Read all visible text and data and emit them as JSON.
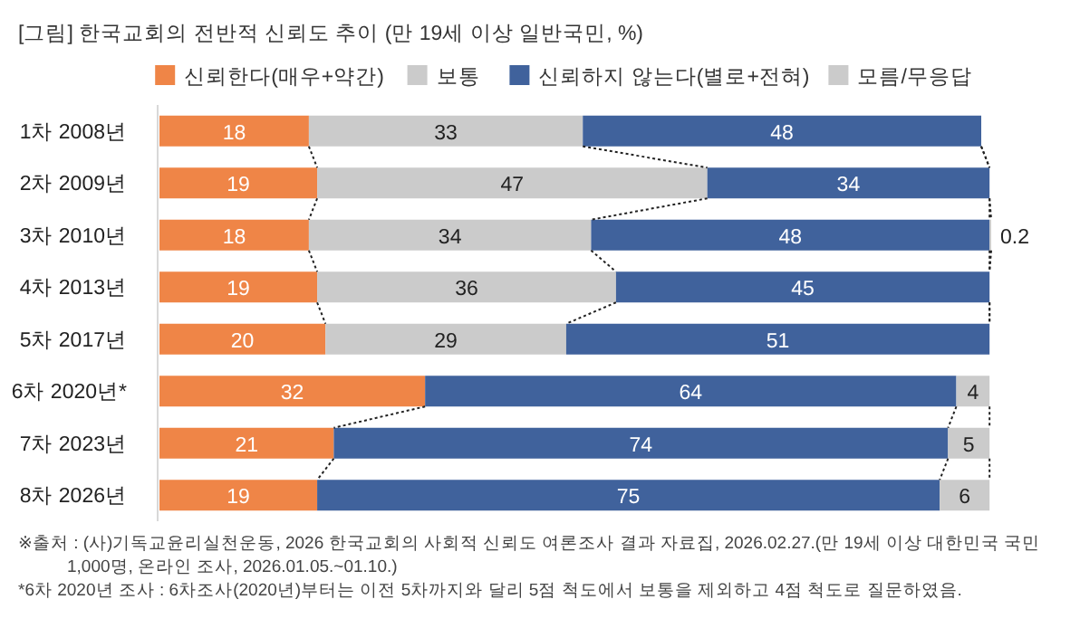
{
  "chart_data": {
    "type": "bar",
    "orientation": "horizontal",
    "stacked": true,
    "data_labels": true,
    "legend": "top",
    "title": "[그림] 한국교회의 전반적 신뢰도 추이 (만 19세 이상 일반국민, %)",
    "categories": [
      "1차 2008년",
      "2차 2009년",
      "3차 2010년",
      "4차 2013년",
      "5차 2017년",
      "6차 2020년*",
      "7차 2023년",
      "8차 2026년"
    ],
    "series": [
      {
        "name": "신뢰한다(매우+약간)",
        "color": "#ef8547",
        "values": [
          18,
          19,
          18,
          19,
          20,
          32,
          21,
          19
        ]
      },
      {
        "name": "보통",
        "color": "#cbcbcb",
        "values": [
          33,
          47,
          34,
          36,
          29,
          null,
          null,
          null
        ]
      },
      {
        "name": "신뢰하지 않는다(별로+전혀)",
        "color": "#40629c",
        "values": [
          48,
          34,
          48,
          45,
          51,
          64,
          74,
          75
        ]
      },
      {
        "name": "모름/무응답",
        "color": "#cbcbcb",
        "values": [
          null,
          null,
          0.2,
          null,
          null,
          4,
          5,
          6
        ]
      }
    ],
    "annotations": [
      "※출처 : (사)기독교윤리실천운동, 2026 한국교회의 사회적 신뢰도 여론조사 결과 자료집, 2026.02.27.(만 19세 이상 대한민국 국민 1,000명, 온라인 조사, 2026.01.05.~01.10.)",
      "*6차 2020년 조사 : 6차조사(2020년)부터는 이전 5차까지와 달리 5점 척도에서 보통을 제외하고 4점 척도로 질문하였음."
    ]
  }
}
